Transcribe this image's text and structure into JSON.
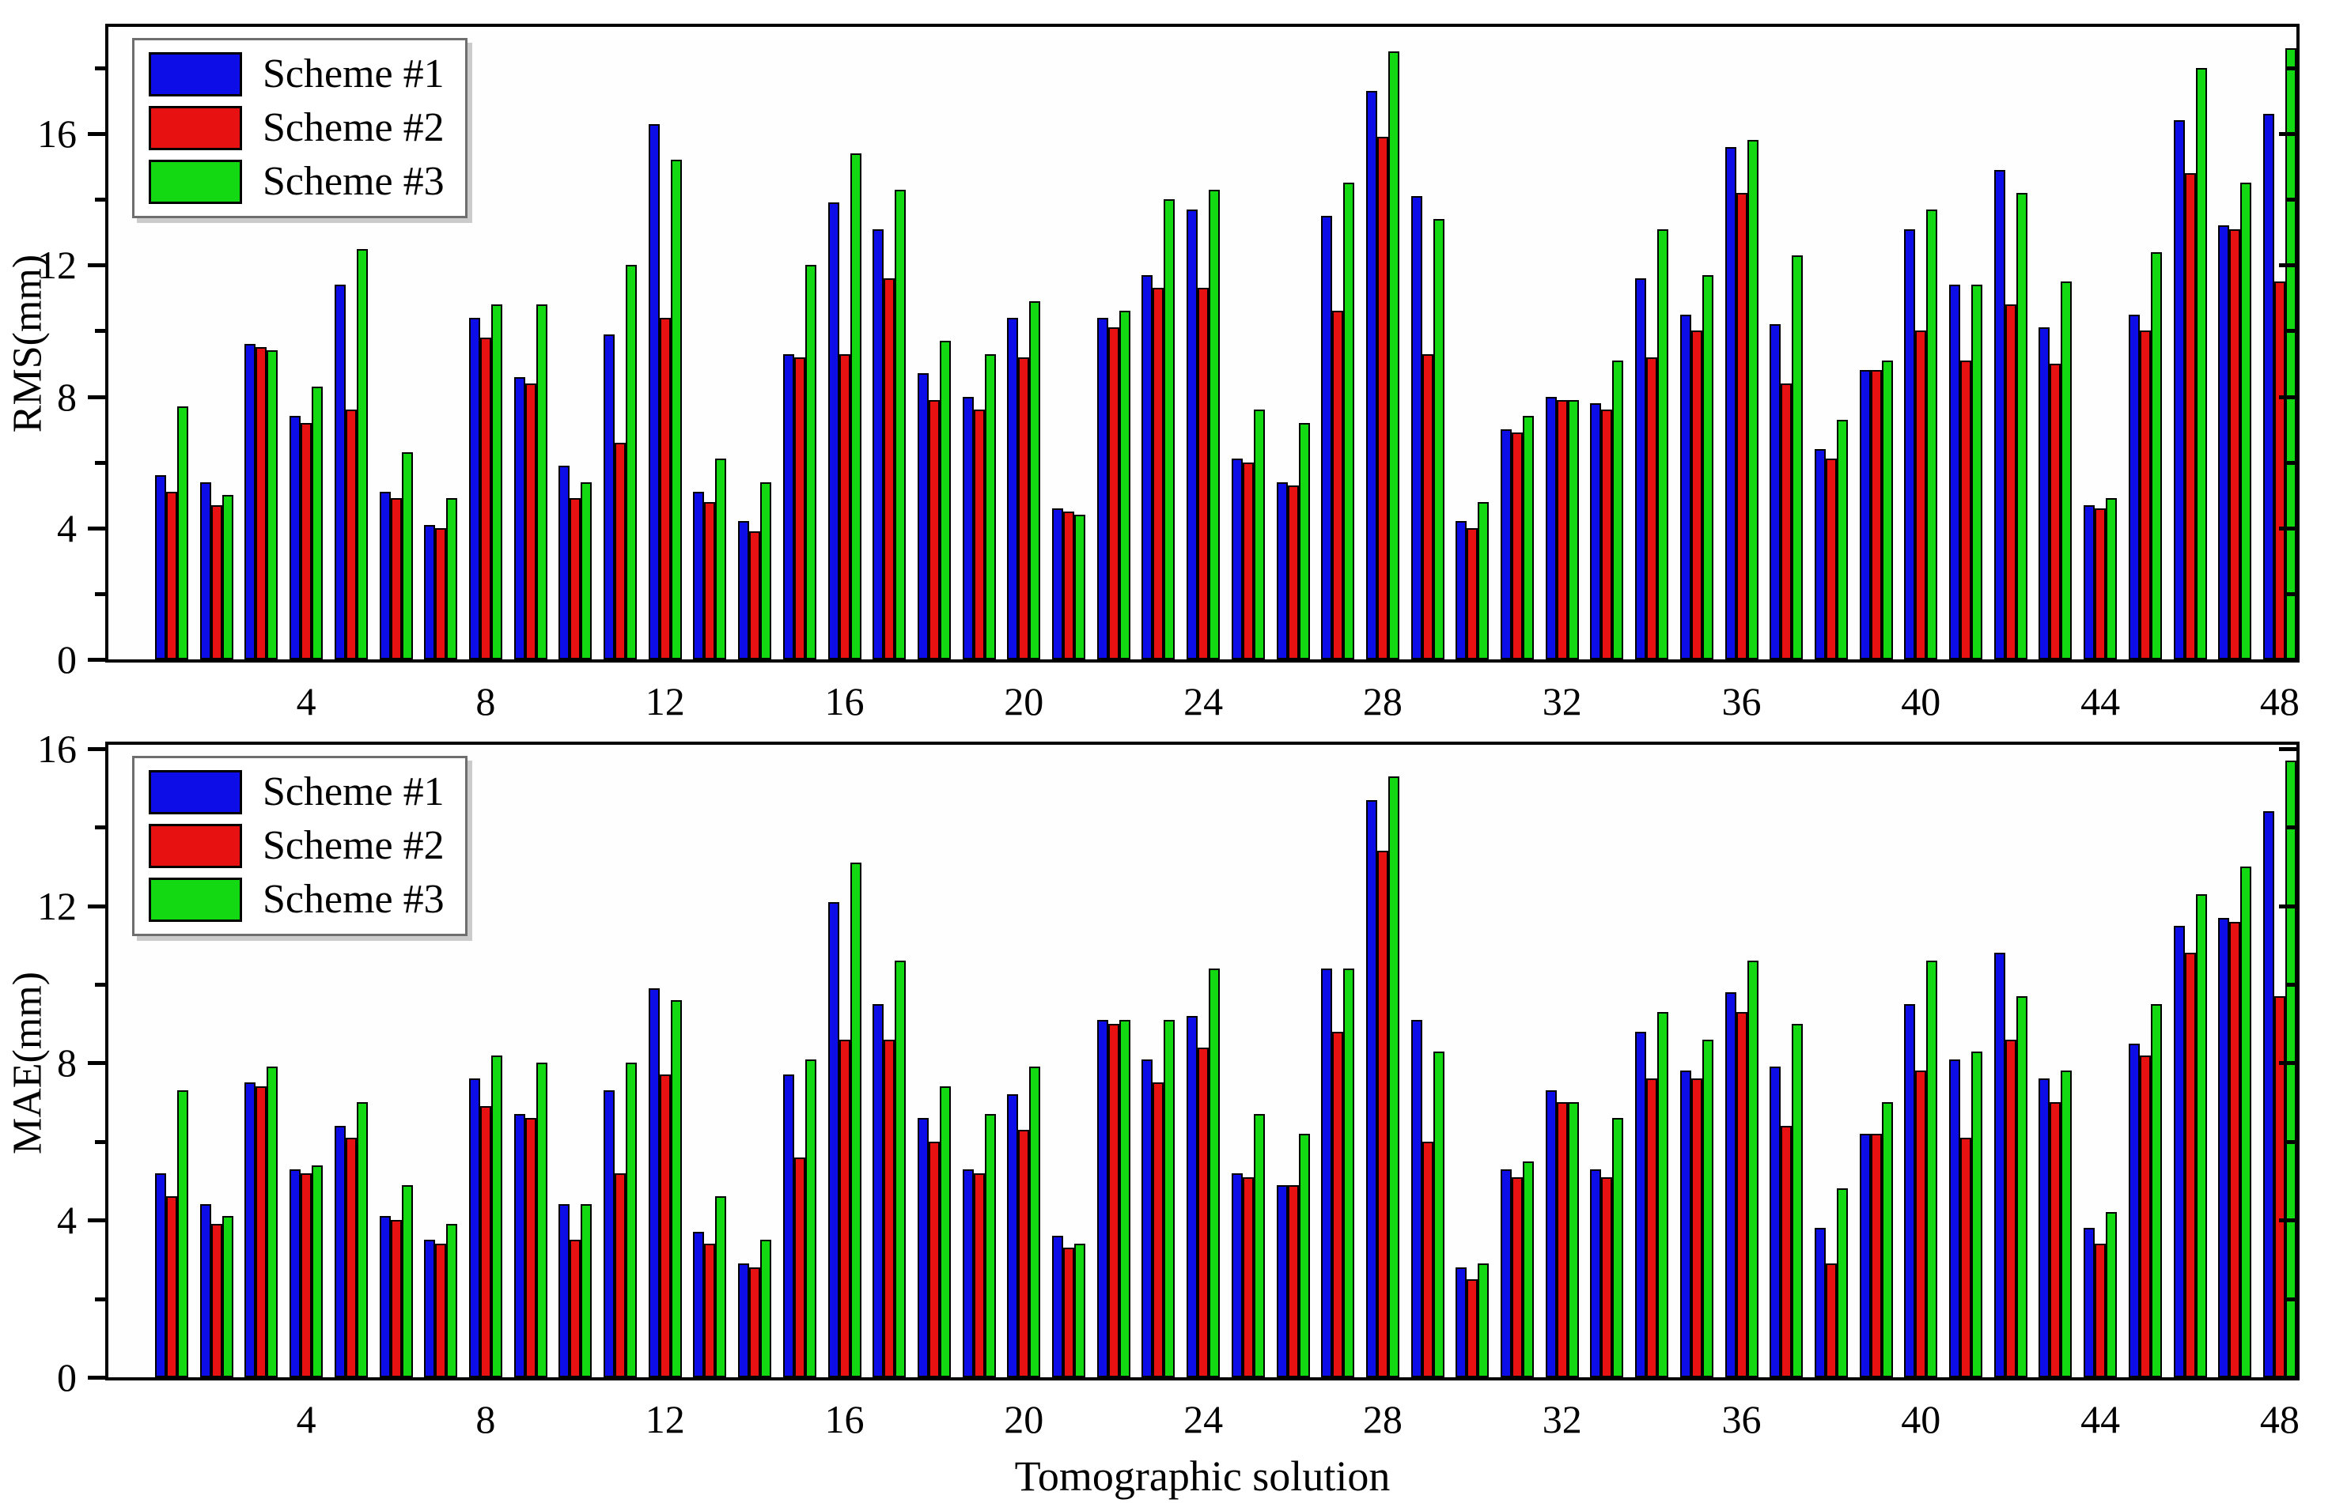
{
  "figure": {
    "x_axis_title": "Tomographic solution",
    "background": "#ffffff"
  },
  "colors": {
    "scheme1": "#0d0de8",
    "scheme2": "#e81111",
    "scheme3": "#12d912",
    "axis": "#000000"
  },
  "legend": {
    "items": [
      {
        "label": "Scheme #1",
        "color": "#0d0de8"
      },
      {
        "label": "Scheme #2",
        "color": "#e81111"
      },
      {
        "label": "Scheme #3",
        "color": "#12d912"
      }
    ]
  },
  "chart_data": [
    {
      "type": "bar",
      "title": "",
      "ylabel": "RMS(mm)",
      "xlabel": "",
      "ylim": [
        0,
        19.25
      ],
      "yticks_major": [
        0,
        4,
        8,
        12,
        16
      ],
      "yticks_minor": [
        2,
        6,
        10,
        14,
        18
      ],
      "xticks": [
        4,
        8,
        12,
        16,
        20,
        24,
        28,
        32,
        36,
        40,
        44,
        48
      ],
      "categories": [
        1,
        2,
        3,
        4,
        5,
        6,
        7,
        8,
        9,
        10,
        11,
        12,
        13,
        14,
        15,
        16,
        17,
        18,
        19,
        20,
        21,
        22,
        23,
        24,
        25,
        26,
        27,
        28,
        29,
        30,
        31,
        32,
        33,
        34,
        35,
        36,
        37,
        38,
        39,
        40,
        41,
        42,
        43,
        44,
        45,
        46,
        47,
        48
      ],
      "grid": false,
      "legend_position": "top-left",
      "series": [
        {
          "name": "Scheme #1",
          "color": "#0d0de8",
          "values": [
            5.6,
            5.4,
            9.6,
            7.4,
            11.4,
            5.1,
            4.1,
            10.4,
            8.6,
            5.9,
            9.9,
            16.3,
            5.1,
            4.2,
            9.3,
            13.9,
            13.1,
            8.7,
            8.0,
            10.4,
            4.6,
            10.4,
            11.7,
            13.7,
            6.1,
            5.4,
            13.5,
            17.3,
            14.1,
            4.2,
            7.0,
            8.0,
            7.8,
            11.6,
            10.5,
            15.6,
            10.2,
            6.4,
            8.8,
            13.1,
            11.4,
            14.9,
            10.1,
            4.7,
            10.5,
            16.4,
            13.2,
            16.6
          ]
        },
        {
          "name": "Scheme #2",
          "color": "#e81111",
          "values": [
            5.1,
            4.7,
            9.5,
            7.2,
            7.6,
            4.9,
            4.0,
            9.8,
            8.4,
            4.9,
            6.6,
            10.4,
            4.8,
            3.9,
            9.2,
            9.3,
            11.6,
            7.9,
            7.6,
            9.2,
            4.5,
            10.1,
            11.3,
            11.3,
            6.0,
            5.3,
            10.6,
            15.9,
            9.3,
            4.0,
            6.9,
            7.9,
            7.6,
            9.2,
            10.0,
            14.2,
            8.4,
            6.1,
            8.8,
            10.0,
            9.1,
            10.8,
            9.0,
            4.6,
            10.0,
            14.8,
            13.1,
            11.5
          ]
        },
        {
          "name": "Scheme #3",
          "color": "#12d912",
          "values": [
            7.7,
            5.0,
            9.4,
            8.3,
            12.5,
            6.3,
            4.9,
            10.8,
            10.8,
            5.4,
            12.0,
            15.2,
            6.1,
            5.4,
            12.0,
            15.4,
            14.3,
            9.7,
            9.3,
            10.9,
            4.4,
            10.6,
            14.0,
            14.3,
            7.6,
            7.2,
            14.5,
            18.5,
            13.4,
            4.8,
            7.4,
            7.9,
            9.1,
            13.1,
            11.7,
            15.8,
            12.3,
            7.3,
            9.1,
            13.7,
            11.4,
            14.2,
            11.5,
            4.9,
            12.4,
            18.0,
            14.5,
            18.6
          ]
        }
      ]
    },
    {
      "type": "bar",
      "title": "",
      "ylabel": "MAE(mm)",
      "xlabel": "Tomographic solution",
      "ylim": [
        0,
        16.1
      ],
      "yticks_major": [
        0,
        4,
        8,
        12,
        16
      ],
      "yticks_minor": [
        2,
        6,
        10,
        14
      ],
      "xticks": [
        4,
        8,
        12,
        16,
        20,
        24,
        28,
        32,
        36,
        40,
        44,
        48
      ],
      "categories": [
        1,
        2,
        3,
        4,
        5,
        6,
        7,
        8,
        9,
        10,
        11,
        12,
        13,
        14,
        15,
        16,
        17,
        18,
        19,
        20,
        21,
        22,
        23,
        24,
        25,
        26,
        27,
        28,
        29,
        30,
        31,
        32,
        33,
        34,
        35,
        36,
        37,
        38,
        39,
        40,
        41,
        42,
        43,
        44,
        45,
        46,
        47,
        48
      ],
      "grid": false,
      "legend_position": "top-left",
      "series": [
        {
          "name": "Scheme #1",
          "color": "#0d0de8",
          "values": [
            5.2,
            4.4,
            7.5,
            5.3,
            6.4,
            4.1,
            3.5,
            7.6,
            6.7,
            4.4,
            7.3,
            9.9,
            3.7,
            2.9,
            7.7,
            12.1,
            9.5,
            6.6,
            5.3,
            7.2,
            3.6,
            9.1,
            8.1,
            9.2,
            5.2,
            4.9,
            10.4,
            14.7,
            9.1,
            2.8,
            5.3,
            7.3,
            5.3,
            8.8,
            7.8,
            9.8,
            7.9,
            3.8,
            6.2,
            9.5,
            8.1,
            10.8,
            7.6,
            3.8,
            8.5,
            11.5,
            11.7,
            14.4
          ]
        },
        {
          "name": "Scheme #2",
          "color": "#e81111",
          "values": [
            4.6,
            3.9,
            7.4,
            5.2,
            6.1,
            4.0,
            3.4,
            6.9,
            6.6,
            3.5,
            5.2,
            7.7,
            3.4,
            2.8,
            5.6,
            8.6,
            8.6,
            6.0,
            5.2,
            6.3,
            3.3,
            9.0,
            7.5,
            8.4,
            5.1,
            4.9,
            8.8,
            13.4,
            6.0,
            2.5,
            5.1,
            7.0,
            5.1,
            7.6,
            7.6,
            9.3,
            6.4,
            2.9,
            6.2,
            7.8,
            6.1,
            8.6,
            7.0,
            3.4,
            8.2,
            10.8,
            11.6,
            9.7
          ]
        },
        {
          "name": "Scheme #3",
          "color": "#12d912",
          "values": [
            7.3,
            4.1,
            7.9,
            5.4,
            7.0,
            4.9,
            3.9,
            8.2,
            8.0,
            4.4,
            8.0,
            9.6,
            4.6,
            3.5,
            8.1,
            13.1,
            10.6,
            7.4,
            6.7,
            7.9,
            3.4,
            9.1,
            9.1,
            10.4,
            6.7,
            6.2,
            10.4,
            15.3,
            8.3,
            2.9,
            5.5,
            7.0,
            6.6,
            9.3,
            8.6,
            10.6,
            9.0,
            4.8,
            7.0,
            10.6,
            8.3,
            9.7,
            7.8,
            4.2,
            9.5,
            12.3,
            13.0,
            15.7
          ]
        }
      ]
    }
  ]
}
